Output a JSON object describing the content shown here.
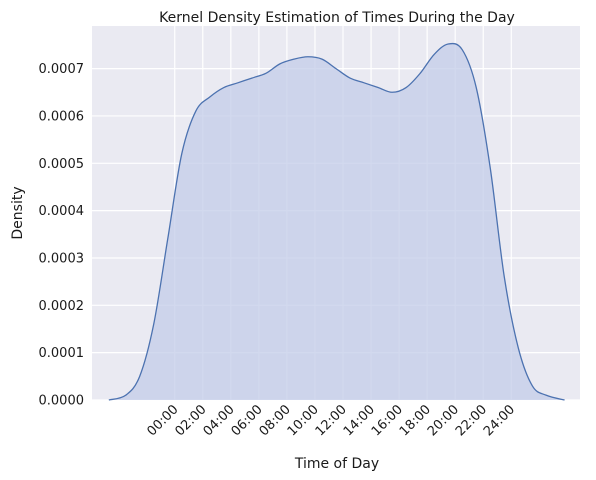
{
  "chart_data": {
    "type": "area",
    "title": "Kernel Density Estimation of Times During the Day",
    "xlabel": "Time of Day",
    "ylabel": "Density",
    "x_tick_labels": [
      "00:00",
      "02:00",
      "04:00",
      "06:00",
      "08:00",
      "10:00",
      "12:00",
      "14:00",
      "16:00",
      "18:00",
      "20:00",
      "22:00",
      "24:00"
    ],
    "x_tick_values": [
      0,
      2,
      4,
      6,
      8,
      10,
      12,
      14,
      16,
      18,
      20,
      22,
      24
    ],
    "y_tick_labels": [
      "0.0000",
      "0.0001",
      "0.0002",
      "0.0003",
      "0.0004",
      "0.0005",
      "0.0006",
      "0.0007"
    ],
    "y_tick_values": [
      0,
      0.0001,
      0.0002,
      0.0003,
      0.0004,
      0.0005,
      0.0006,
      0.0007
    ],
    "xlim": [
      -5.9,
      28.9
    ],
    "ylim": [
      0,
      0.00079
    ],
    "grid": true,
    "series": [
      {
        "x": [
          -4.7,
          -3.5,
          -2.5,
          -1.5,
          -0.5,
          0.5,
          1.5,
          2.5,
          3.5,
          4.5,
          5.5,
          6.5,
          7.5,
          8.5,
          9.5,
          10.5,
          11.5,
          12.5,
          13.5,
          14.5,
          15.5,
          16.5,
          17.5,
          18.5,
          19.5,
          20.5,
          21.5,
          22.5,
          23.5,
          24.5,
          25.5,
          26.5,
          27.8
        ],
        "y": [
          0.0,
          1e-05,
          5e-05,
          0.00016,
          0.00034,
          0.00052,
          0.00061,
          0.00064,
          0.00066,
          0.00067,
          0.00068,
          0.00069,
          0.00071,
          0.00072,
          0.000725,
          0.00072,
          0.0007,
          0.00068,
          0.00067,
          0.00066,
          0.00065,
          0.00066,
          0.00069,
          0.00073,
          0.000752,
          0.00074,
          0.00066,
          0.00049,
          0.00026,
          0.00011,
          3e-05,
          1e-05,
          0.0
        ],
        "color": "#4c72b0",
        "fill": "#c3cce8"
      }
    ]
  },
  "colors": {
    "plot_background": "#eaeaf2",
    "grid": "#ffffff",
    "line": "#4c72b0",
    "fill": "#c3cce8"
  }
}
